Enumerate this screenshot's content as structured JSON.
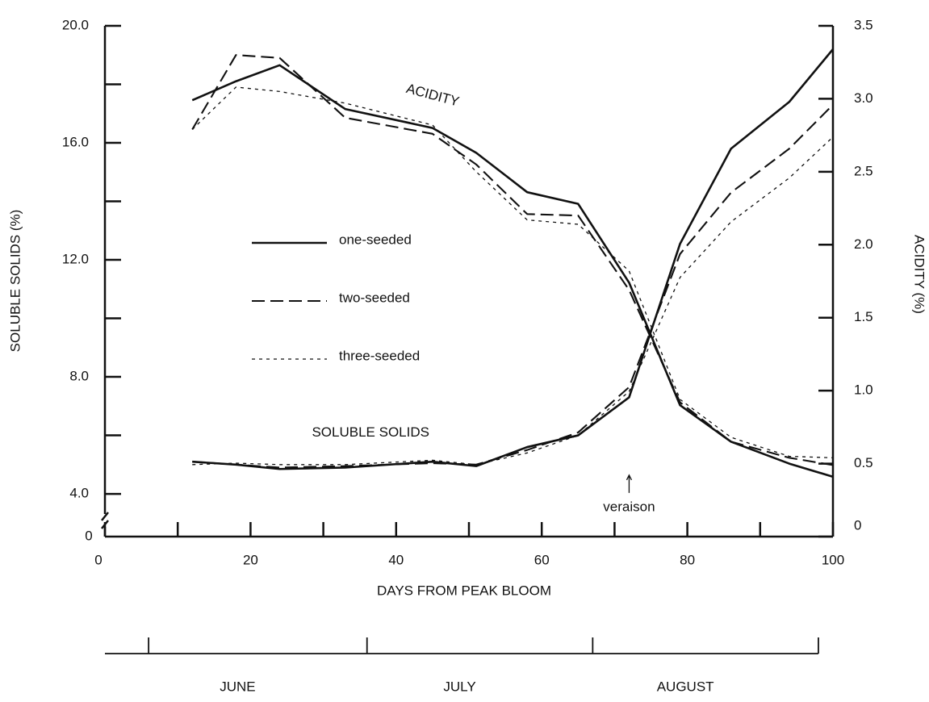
{
  "chart_data": {
    "type": "line",
    "x_label": "DAYS FROM PEAK BLOOM",
    "y_label": "SOLUBLE SOLIDS   (%)",
    "y2_label": "ACIDITY (%)",
    "xlim": [
      0,
      100
    ],
    "xticks": [
      0,
      20,
      40,
      60,
      80,
      100
    ],
    "xminor": [
      10,
      30,
      50,
      70,
      90
    ],
    "ylim": [
      2.54,
      20
    ],
    "yticks": [
      {
        "value": 4,
        "label": "4.0"
      },
      {
        "value": 8,
        "label": "8.0"
      },
      {
        "value": 12,
        "label": "12.0"
      },
      {
        "value": 16,
        "label": "16.0"
      },
      {
        "value": 20,
        "label": "20.0"
      }
    ],
    "yminor": [
      6,
      10,
      14,
      18
    ],
    "ybreak_label": "0",
    "y2lim": [
      0,
      3.5
    ],
    "y2ticks": [
      0,
      0.5,
      {
        "value": 1,
        "label": "1.0"
      },
      1.5,
      {
        "value": 2,
        "label": "2.0"
      },
      2.5,
      {
        "value": 3,
        "label": "3.0"
      },
      3.5
    ],
    "series": [
      {
        "name": "one-seeded",
        "color": "#111111",
        "dash": "solid",
        "x": [
          12,
          18,
          24,
          33,
          45,
          51,
          58,
          65,
          72,
          79,
          86,
          94,
          100
        ],
        "values": [
          5.1,
          5.0,
          4.85,
          4.9,
          5.1,
          4.95,
          5.6,
          6.0,
          7.3,
          12.55,
          15.8,
          17.4,
          19.2
        ],
        "acidity": [
          2.99,
          3.12,
          3.23,
          2.93,
          2.8,
          2.63,
          2.36,
          2.28,
          1.74,
          0.9,
          0.65,
          0.5,
          0.41
        ]
      },
      {
        "name": "two-seeded",
        "color": "#111111",
        "dash": "long",
        "x": [
          12,
          18,
          24,
          33,
          45,
          51,
          58,
          65,
          72,
          79,
          86,
          94,
          100
        ],
        "values": [
          5.1,
          5.0,
          4.9,
          4.95,
          5.05,
          5.0,
          5.5,
          6.1,
          7.65,
          12.2,
          14.3,
          15.8,
          17.3
        ],
        "acidity": [
          2.79,
          3.3,
          3.28,
          2.87,
          2.76,
          2.55,
          2.21,
          2.2,
          1.69,
          0.92,
          0.65,
          0.54,
          0.49
        ]
      },
      {
        "name": "three-seeded",
        "color": "#111111",
        "dash": "short",
        "x": [
          12,
          18,
          24,
          33,
          45,
          51,
          58,
          65,
          72,
          79,
          86,
          94,
          100
        ],
        "values": [
          5.0,
          5.05,
          5.0,
          5.0,
          5.15,
          5.0,
          5.4,
          6.0,
          7.5,
          11.4,
          13.3,
          14.8,
          16.2
        ],
        "acidity": [
          2.79,
          3.08,
          3.05,
          2.97,
          2.82,
          2.5,
          2.17,
          2.14,
          1.82,
          0.94,
          0.68,
          0.55,
          0.54
        ]
      }
    ],
    "annotations": [
      {
        "text": "ACIDITY",
        "x": 45,
        "y2": 3.02
      },
      {
        "text": "SOLUBLE SOLIDS",
        "x": 36.5,
        "y2": 0.71
      },
      {
        "text": "veraison",
        "x": 72,
        "y2": 0.2
      }
    ],
    "months": {
      "boundaries": [
        6,
        36,
        67,
        98
      ],
      "labels": [
        "JUNE",
        "JULY",
        "AUGUST"
      ]
    }
  }
}
